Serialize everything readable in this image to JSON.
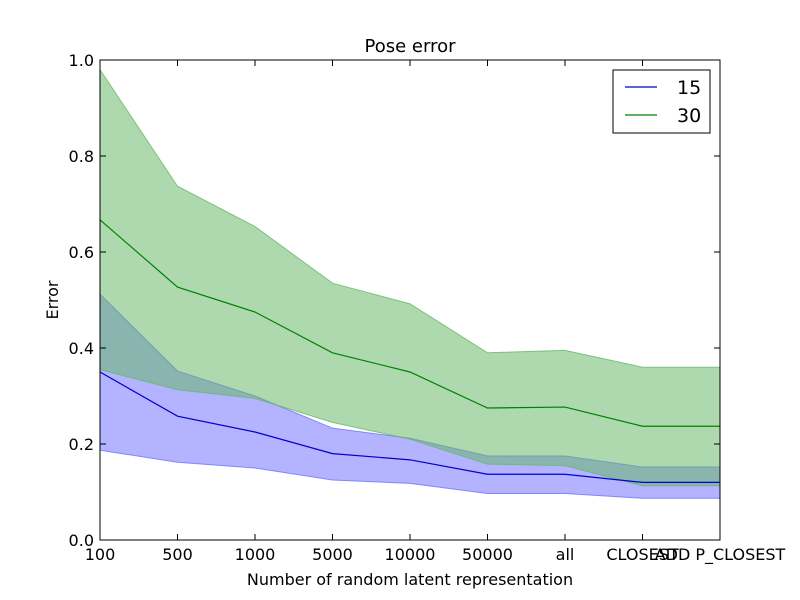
{
  "chart_data": {
    "type": "line",
    "title": "Pose error",
    "xlabel": "Number of random latent representation",
    "ylabel": "Error",
    "categories": [
      "100",
      "500",
      "1000",
      "5000",
      "10000",
      "50000",
      "all",
      "CLOSEST",
      "ADD P_CLOSEST"
    ],
    "ylim": [
      0.0,
      1.0
    ],
    "yticks": [
      "0.0",
      "0.2",
      "0.4",
      "0.6",
      "0.8",
      "1.0"
    ],
    "grid": false,
    "legend_position": "top-right",
    "series": [
      {
        "name": "15",
        "color": "#0000cc",
        "band_color": "#7070ff",
        "values": [
          0.35,
          0.258,
          0.225,
          0.18,
          0.167,
          0.137,
          0.137,
          0.12,
          0.12
        ],
        "lower": [
          0.187,
          0.162,
          0.15,
          0.125,
          0.118,
          0.097,
          0.097,
          0.087,
          0.087
        ],
        "upper": [
          0.512,
          0.352,
          0.3,
          0.233,
          0.212,
          0.175,
          0.175,
          0.152,
          0.152
        ]
      },
      {
        "name": "30",
        "color": "#008000",
        "band_color": "#66b866",
        "values": [
          0.667,
          0.527,
          0.475,
          0.39,
          0.35,
          0.275,
          0.277,
          0.237,
          0.237
        ],
        "lower": [
          0.355,
          0.313,
          0.295,
          0.245,
          0.21,
          0.158,
          0.155,
          0.113,
          0.113
        ],
        "upper": [
          0.98,
          0.737,
          0.653,
          0.535,
          0.492,
          0.39,
          0.395,
          0.36,
          0.36
        ]
      }
    ]
  }
}
